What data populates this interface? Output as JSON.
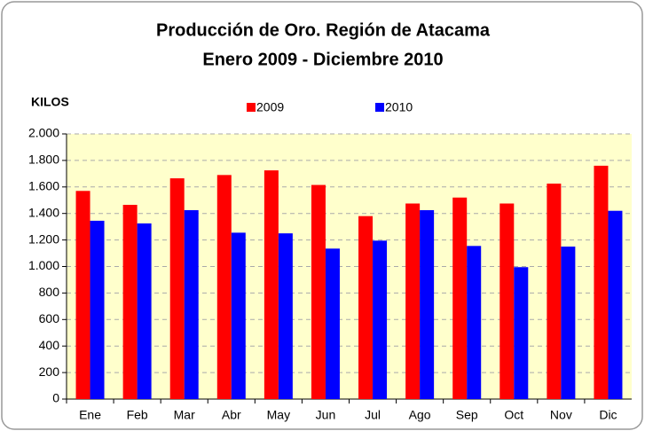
{
  "chart_data": {
    "type": "bar",
    "title": "Producción de Oro. Región de Atacama",
    "subtitle": "Enero 2009 - Diciembre 2010",
    "ylabel": "KILOS",
    "categories": [
      "Ene",
      "Feb",
      "Mar",
      "Abr",
      "May",
      "Jun",
      "Jul",
      "Ago",
      "Sep",
      "Oct",
      "Nov",
      "Dic"
    ],
    "series": [
      {
        "name": "2009",
        "color": "#ff0000",
        "values": [
          1570,
          1465,
          1665,
          1690,
          1725,
          1615,
          1380,
          1475,
          1520,
          1475,
          1625,
          1760
        ]
      },
      {
        "name": "2010",
        "color": "#0000ff",
        "values": [
          1345,
          1325,
          1425,
          1255,
          1250,
          1135,
          1195,
          1425,
          1155,
          995,
          1150,
          1420
        ]
      }
    ],
    "ylim": [
      0,
      2000
    ],
    "yticks": [
      0,
      200,
      400,
      600,
      800,
      {
        "value": 1000,
        "label": "1.000"
      },
      {
        "value": 1200,
        "label": "1.200"
      },
      {
        "value": 1400,
        "label": "1.400"
      },
      {
        "value": 1600,
        "label": "1.600"
      },
      {
        "value": 1800,
        "label": "1.800"
      },
      {
        "value": 2000,
        "label": "2.000"
      }
    ],
    "grid": true,
    "legend": "top"
  }
}
